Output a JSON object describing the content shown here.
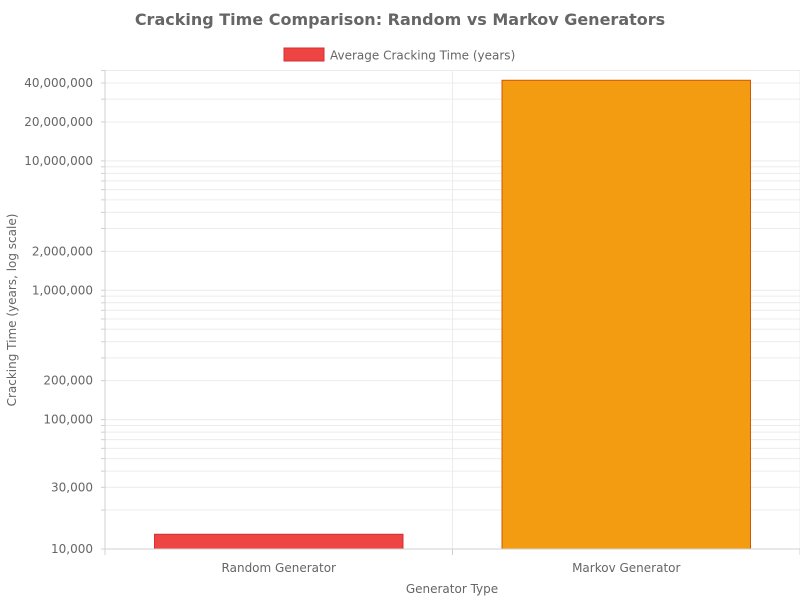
{
  "chart_data": {
    "type": "bar",
    "title": "Cracking Time Comparison: Random vs Markov Generators",
    "xlabel": "Generator Type",
    "ylabel": "Cracking Time (years, log scale)",
    "scale": "log",
    "ylim": [
      10000,
      50000000
    ],
    "yticks": [
      10000,
      30000,
      100000,
      200000,
      1000000,
      2000000,
      10000000,
      20000000,
      40000000
    ],
    "ytick_labels": [
      "10,000",
      "30,000",
      "100,000",
      "200,000",
      "1,000,000",
      "2,000,000",
      "10,000,000",
      "20,000,000",
      "40,000,000"
    ],
    "categories": [
      "Random Generator",
      "Markov Generator"
    ],
    "series": [
      {
        "name": "Average Cracking Time (years)",
        "values": [
          13000,
          42000000
        ]
      }
    ],
    "bar_colors": [
      "#ef4444",
      "#f39c12"
    ],
    "bar_borders": [
      "#d32f2f",
      "#d35400"
    ],
    "legend": "top-center",
    "grid": true
  }
}
